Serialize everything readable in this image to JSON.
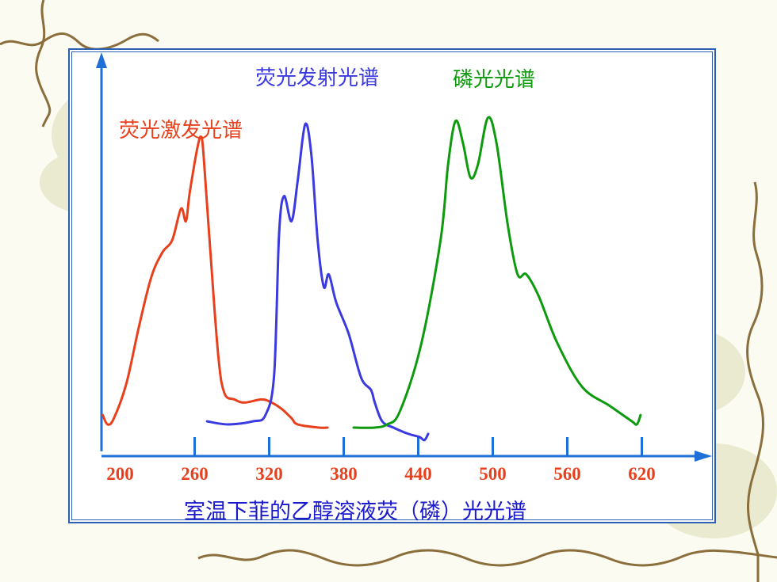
{
  "colors": {
    "excitation": "#e8401c",
    "fluorescence": "#3a3ae0",
    "phosphorescence": "#0d9a0d",
    "axis": "#1f6fd8",
    "frame": "#2c5fb4",
    "caption": "#1a1acc"
  },
  "chart_data": {
    "type": "line",
    "title": "",
    "xlabel": "室温下菲的乙醇溶液荧（磷）光光谱",
    "ylabel": "",
    "grid": false,
    "xlim": [
      185,
      665
    ],
    "ylim": [
      0,
      100
    ],
    "x_tick_labels": [
      "200",
      "260",
      "320",
      "380",
      "440",
      "500",
      "560",
      "620"
    ],
    "x_tick_colors": [
      "#e8401c",
      "#e8401c",
      "#e8401c",
      "#e8401c",
      "#e8401c",
      "#e8401c",
      "#e8401c",
      "#e8401c"
    ],
    "x_tick_marks": [
      260,
      320,
      380,
      440,
      500,
      560,
      620
    ],
    "series": [
      {
        "name": "荧光激发光谱",
        "color_key": "excitation",
        "points": [
          [
            186,
            4
          ],
          [
            190,
            1
          ],
          [
            195,
            3
          ],
          [
            205,
            14
          ],
          [
            215,
            32
          ],
          [
            225,
            48
          ],
          [
            234,
            56
          ],
          [
            242,
            60
          ],
          [
            249,
            70
          ],
          [
            253,
            66
          ],
          [
            256,
            75
          ],
          [
            262,
            89
          ],
          [
            265,
            93
          ],
          [
            267,
            88
          ],
          [
            272,
            60
          ],
          [
            279,
            23
          ],
          [
            284,
            11
          ],
          [
            292,
            9
          ],
          [
            300,
            8
          ],
          [
            314,
            9
          ],
          [
            322,
            8
          ],
          [
            330,
            6
          ],
          [
            338,
            3
          ],
          [
            343,
            1
          ],
          [
            360,
            0
          ],
          [
            367,
            0
          ]
        ]
      },
      {
        "name": "荧光发射光谱",
        "color_key": "fluorescence",
        "points": [
          [
            270,
            2
          ],
          [
            287,
            1
          ],
          [
            307,
            2
          ],
          [
            317,
            4
          ],
          [
            324,
            17
          ],
          [
            328,
            62
          ],
          [
            332,
            74
          ],
          [
            338,
            66
          ],
          [
            343,
            79
          ],
          [
            349,
            97
          ],
          [
            354,
            87
          ],
          [
            359,
            60
          ],
          [
            364,
            45
          ],
          [
            368,
            49
          ],
          [
            374,
            40
          ],
          [
            384,
            30
          ],
          [
            394,
            16
          ],
          [
            402,
            12
          ],
          [
            405,
            8
          ],
          [
            411,
            2
          ],
          [
            420,
            0
          ],
          [
            432,
            -2
          ],
          [
            441,
            -3
          ],
          [
            445,
            -4
          ],
          [
            448,
            -2
          ]
        ]
      },
      {
        "name": "磷光光谱",
        "color_key": "phosphorescence",
        "points": [
          [
            388,
            0
          ],
          [
            405,
            0
          ],
          [
            415,
            1
          ],
          [
            425,
            5
          ],
          [
            442,
            26
          ],
          [
            458,
            60
          ],
          [
            464,
            84
          ],
          [
            470,
            98
          ],
          [
            476,
            91
          ],
          [
            482,
            80
          ],
          [
            488,
            84
          ],
          [
            496,
            99
          ],
          [
            503,
            91
          ],
          [
            512,
            65
          ],
          [
            520,
            49
          ],
          [
            527,
            49
          ],
          [
            537,
            42
          ],
          [
            552,
            27
          ],
          [
            572,
            13
          ],
          [
            594,
            7
          ],
          [
            612,
            2
          ],
          [
            616,
            1
          ],
          [
            619,
            4
          ]
        ]
      }
    ]
  },
  "labels": {
    "excitation": "荧光激发光谱",
    "fluorescence": "荧光发射光谱",
    "phosphorescence": "磷光光谱"
  }
}
